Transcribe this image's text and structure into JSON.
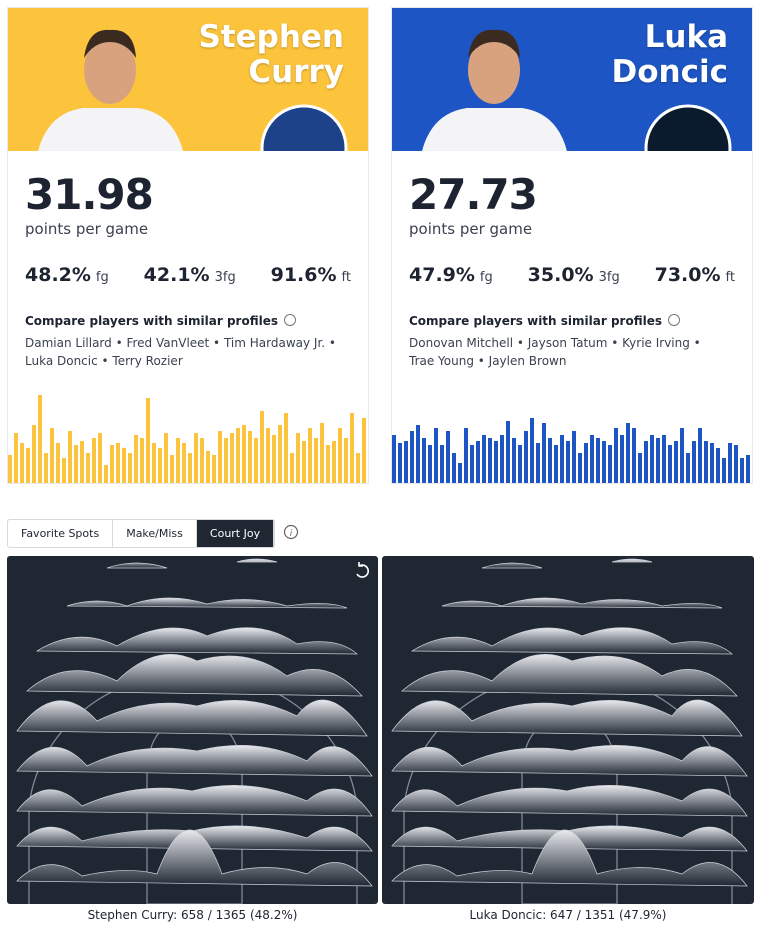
{
  "players": [
    {
      "first_name": "Stephen",
      "last_name": "Curry",
      "ppg": "31.98",
      "ppg_label": "points per game",
      "stats": [
        {
          "value": "48.2%",
          "label": "fg"
        },
        {
          "value": "42.1%",
          "label": "3fg"
        },
        {
          "value": "91.6%",
          "label": "ft"
        }
      ],
      "similar_title": "Compare players with similar profiles",
      "similar": "Damian Lillard • Fred VanVleet • Tim Hardaway Jr. • Luka Doncic • Terry Rozier",
      "game_bars": [
        28,
        50,
        40,
        35,
        58,
        88,
        30,
        55,
        40,
        25,
        52,
        38,
        42,
        30,
        45,
        50,
        18,
        38,
        40,
        35,
        30,
        48,
        45,
        85,
        40,
        35,
        50,
        28,
        45,
        40,
        30,
        50,
        45,
        32,
        28,
        52,
        45,
        50,
        55,
        58,
        52,
        45,
        72,
        55,
        48,
        58,
        70,
        30,
        50,
        42,
        55,
        45,
        60,
        38,
        42,
        55,
        45,
        70,
        30,
        65
      ]
    },
    {
      "first_name": "Luka",
      "last_name": "Doncic",
      "ppg": "27.73",
      "ppg_label": "points per game",
      "stats": [
        {
          "value": "47.9%",
          "label": "fg"
        },
        {
          "value": "35.0%",
          "label": "3fg"
        },
        {
          "value": "73.0%",
          "label": "ft"
        }
      ],
      "similar_title": "Compare players with similar profiles",
      "similar": "Donovan Mitchell • Jayson Tatum • Kyrie Irving • Trae Young • Jaylen Brown",
      "game_bars": [
        48,
        40,
        42,
        52,
        58,
        45,
        38,
        55,
        38,
        52,
        30,
        20,
        55,
        38,
        42,
        48,
        45,
        42,
        48,
        62,
        45,
        38,
        52,
        65,
        40,
        60,
        45,
        38,
        48,
        42,
        52,
        30,
        40,
        48,
        45,
        42,
        38,
        55,
        48,
        60,
        55,
        30,
        42,
        48,
        45,
        48,
        38,
        42,
        55,
        30,
        42,
        55,
        42,
        40,
        35,
        25,
        40,
        38,
        25,
        28
      ]
    }
  ],
  "tabs": [
    "Favorite Spots",
    "Make/Miss",
    "Court Joy"
  ],
  "active_tab": 2,
  "court_captions": [
    "Stephen Curry: 658 / 1365 (48.2%)",
    "Luka Doncic: 647 / 1351 (47.9%)"
  ]
}
